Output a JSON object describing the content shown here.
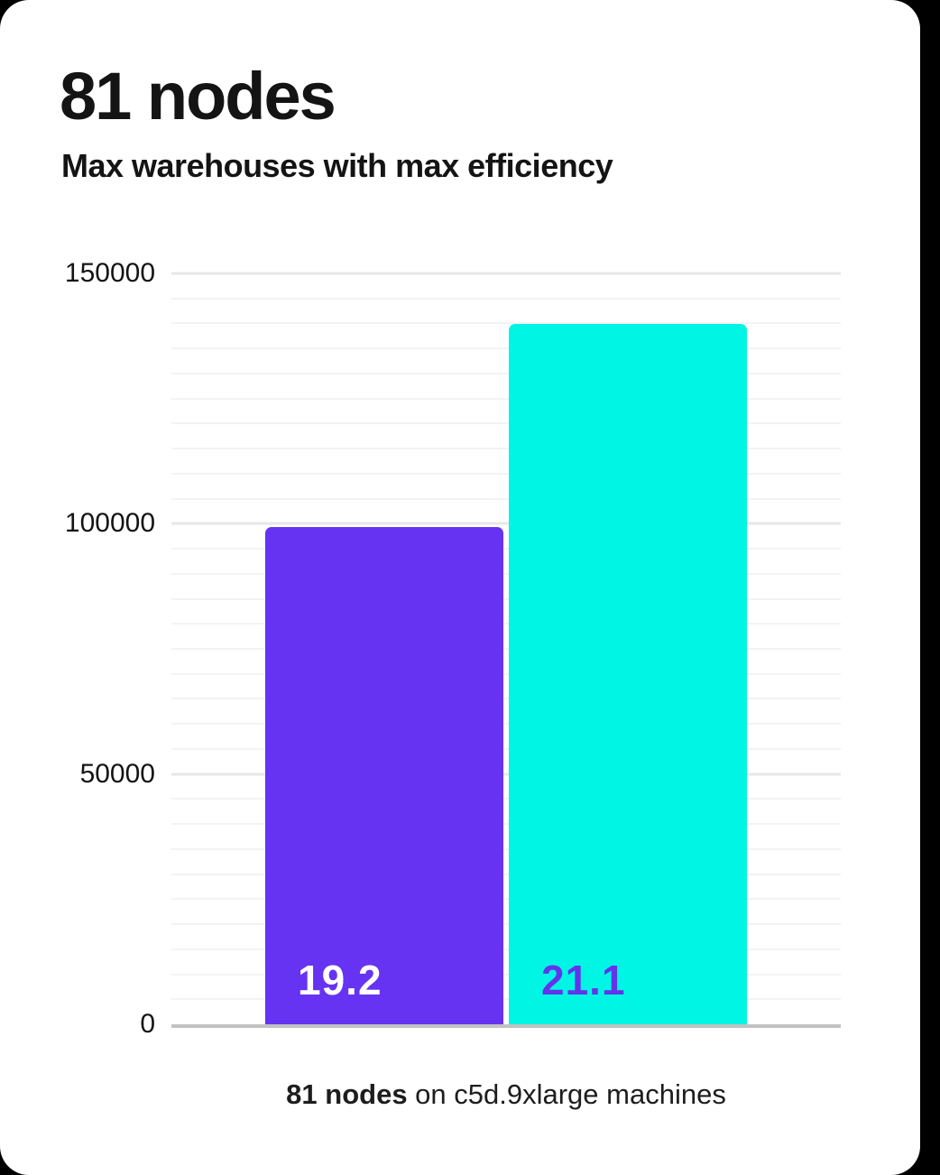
{
  "header": {
    "title": "81 nodes",
    "subtitle": "Max warehouses with max efficiency"
  },
  "caption": {
    "bold": "81 nodes",
    "rest": " on c5d.9xlarge machines"
  },
  "palette": {
    "page_background": "#000000",
    "card_background": "#ffffff",
    "text": "#141414",
    "grid_minor": "#f3f3f3",
    "grid_major": "#e7e7e7",
    "axis_line": "#c2c2c2",
    "bar_purple": "#6633f2",
    "bar_cyan": "#00f5e4",
    "label_on_purple": "#ffffff",
    "label_on_cyan": "#6334eb"
  },
  "chart_data": {
    "type": "bar",
    "title": "81 nodes",
    "subtitle": "Max warehouses with max efficiency",
    "xlabel": "81 nodes on c5d.9xlarge machines",
    "ylabel": "",
    "ylim": [
      0,
      150000
    ],
    "yticks": [
      0,
      50000,
      100000,
      150000
    ],
    "ytick_labels": [
      "0",
      "50000",
      "100000",
      "150000"
    ],
    "minor_step": 5000,
    "major_step": 50000,
    "grid": true,
    "legend": "none",
    "bars": [
      {
        "label": "19.2",
        "value": 99400,
        "color": "#6633f2",
        "label_color": "#ffffff"
      },
      {
        "label": "21.1",
        "value": 139900,
        "color": "#00f5e4",
        "label_color": "#6334eb"
      }
    ]
  }
}
